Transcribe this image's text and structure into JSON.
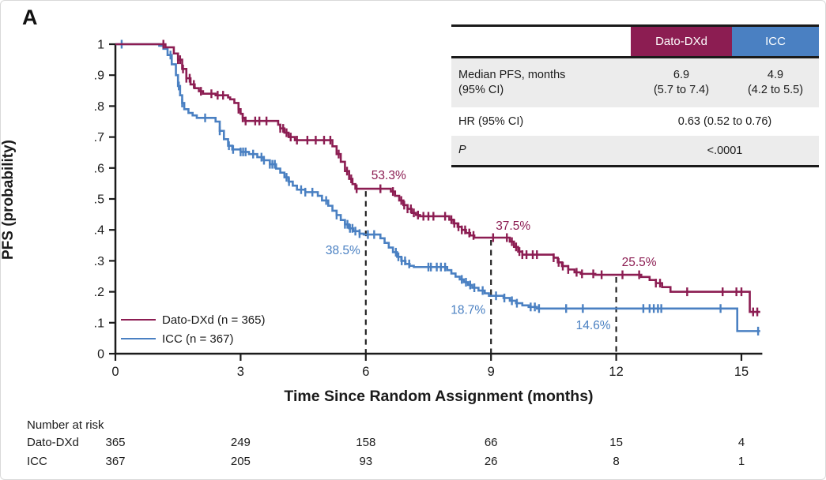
{
  "panel_label": "A",
  "chart_data": {
    "type": "line",
    "subtype": "kaplan-meier-step",
    "title": "",
    "x_axis": {
      "label": "Time Since Random Assignment (months)",
      "ticks": [
        0,
        3,
        6,
        9,
        12,
        15
      ],
      "range": [
        0,
        15.5
      ],
      "grid": false
    },
    "y_axis": {
      "label": "PFS (probability)",
      "ticks": [
        0,
        0.1,
        0.2,
        0.3,
        0.4,
        0.5,
        0.6,
        0.7,
        0.8,
        0.9,
        1
      ],
      "tick_labels": [
        "0",
        ".1",
        ".2",
        ".3",
        ".4",
        ".5",
        ".6",
        ".7",
        ".8",
        ".9",
        "1"
      ],
      "range": [
        0,
        1
      ],
      "grid": false
    },
    "legend_position": "lower-left",
    "series": [
      {
        "name": "ICC",
        "legend_label": "ICC (n = 367)",
        "color": "#4A80C2",
        "end_t": 15.45,
        "steps": [
          [
            0,
            1.0
          ],
          [
            1.05,
            0.995
          ],
          [
            1.15,
            0.985
          ],
          [
            1.25,
            0.965
          ],
          [
            1.35,
            0.935
          ],
          [
            1.45,
            0.9
          ],
          [
            1.5,
            0.865
          ],
          [
            1.55,
            0.835
          ],
          [
            1.6,
            0.81
          ],
          [
            1.65,
            0.79
          ],
          [
            1.75,
            0.778
          ],
          [
            1.85,
            0.77
          ],
          [
            1.95,
            0.762
          ],
          [
            2.4,
            0.75
          ],
          [
            2.5,
            0.72
          ],
          [
            2.6,
            0.693
          ],
          [
            2.7,
            0.672
          ],
          [
            2.8,
            0.66
          ],
          [
            3.0,
            0.652
          ],
          [
            3.2,
            0.645
          ],
          [
            3.4,
            0.635
          ],
          [
            3.55,
            0.625
          ],
          [
            3.7,
            0.612
          ],
          [
            3.85,
            0.598
          ],
          [
            3.95,
            0.585
          ],
          [
            4.05,
            0.57
          ],
          [
            4.15,
            0.556
          ],
          [
            4.25,
            0.543
          ],
          [
            4.35,
            0.53
          ],
          [
            4.55,
            0.522
          ],
          [
            4.85,
            0.51
          ],
          [
            4.95,
            0.495
          ],
          [
            5.1,
            0.478
          ],
          [
            5.2,
            0.462
          ],
          [
            5.3,
            0.448
          ],
          [
            5.4,
            0.432
          ],
          [
            5.5,
            0.418
          ],
          [
            5.6,
            0.405
          ],
          [
            5.7,
            0.396
          ],
          [
            5.85,
            0.388
          ],
          [
            5.95,
            0.385
          ],
          [
            6.35,
            0.373
          ],
          [
            6.45,
            0.358
          ],
          [
            6.55,
            0.343
          ],
          [
            6.65,
            0.328
          ],
          [
            6.75,
            0.313
          ],
          [
            6.85,
            0.3
          ],
          [
            6.95,
            0.29
          ],
          [
            7.05,
            0.284
          ],
          [
            7.15,
            0.28
          ],
          [
            7.95,
            0.27
          ],
          [
            8.05,
            0.259
          ],
          [
            8.15,
            0.249
          ],
          [
            8.25,
            0.24
          ],
          [
            8.35,
            0.231
          ],
          [
            8.45,
            0.222
          ],
          [
            8.55,
            0.213
          ],
          [
            8.7,
            0.204
          ],
          [
            8.85,
            0.195
          ],
          [
            8.95,
            0.187
          ],
          [
            9.3,
            0.18
          ],
          [
            9.45,
            0.171
          ],
          [
            9.6,
            0.163
          ],
          [
            9.75,
            0.156
          ],
          [
            9.9,
            0.151
          ],
          [
            10.1,
            0.146
          ],
          [
            14.9,
            0.073
          ]
        ],
        "censor_times": [
          0.15,
          1.32,
          1.52,
          1.6,
          2.15,
          2.5,
          2.72,
          2.82,
          3.0,
          3.06,
          3.12,
          3.3,
          3.5,
          3.56,
          3.7,
          3.76,
          3.82,
          4.1,
          4.16,
          4.45,
          4.55,
          4.72,
          5.05,
          5.3,
          5.5,
          5.56,
          5.62,
          5.68,
          5.75,
          5.85,
          6.05,
          6.2,
          6.72,
          6.78,
          6.86,
          6.94,
          7.04,
          7.5,
          7.56,
          7.7,
          7.8,
          7.9,
          8.3,
          8.4,
          8.5,
          8.6,
          8.8,
          9.12,
          9.32,
          9.5,
          9.62,
          9.95,
          10.05,
          10.15,
          10.8,
          11.2,
          12.65,
          12.8,
          12.9,
          13.0,
          13.08,
          14.5,
          15.4
        ],
        "annotations": [
          {
            "label": "38.5%",
            "t": 6,
            "s": 0.385,
            "dx": -7,
            "dy": 25,
            "anchor": "end"
          },
          {
            "label": "18.7%",
            "t": 9,
            "s": 0.187,
            "dx": -7,
            "dy": 23,
            "anchor": "end"
          },
          {
            "label": "14.6%",
            "t": 12,
            "s": 0.146,
            "dx": -7,
            "dy": 26,
            "anchor": "end"
          }
        ]
      },
      {
        "name": "Dato-DXd",
        "legend_label": "Dato-DXd (n = 365)",
        "color": "#8C1D52",
        "end_t": 15.45,
        "steps": [
          [
            0,
            1.0
          ],
          [
            1.2,
            0.99
          ],
          [
            1.4,
            0.97
          ],
          [
            1.5,
            0.95
          ],
          [
            1.6,
            0.92
          ],
          [
            1.7,
            0.89
          ],
          [
            1.8,
            0.87
          ],
          [
            1.9,
            0.858
          ],
          [
            2.0,
            0.848
          ],
          [
            2.1,
            0.84
          ],
          [
            2.4,
            0.835
          ],
          [
            2.7,
            0.828
          ],
          [
            2.75,
            0.822
          ],
          [
            2.85,
            0.81
          ],
          [
            2.95,
            0.79
          ],
          [
            3.0,
            0.775
          ],
          [
            3.05,
            0.762
          ],
          [
            3.1,
            0.752
          ],
          [
            3.9,
            0.74
          ],
          [
            3.95,
            0.728
          ],
          [
            4.05,
            0.714
          ],
          [
            4.15,
            0.7
          ],
          [
            4.3,
            0.69
          ],
          [
            5.2,
            0.67
          ],
          [
            5.3,
            0.645
          ],
          [
            5.4,
            0.62
          ],
          [
            5.5,
            0.59
          ],
          [
            5.6,
            0.565
          ],
          [
            5.68,
            0.548
          ],
          [
            5.75,
            0.533
          ],
          [
            6.6,
            0.524
          ],
          [
            6.7,
            0.51
          ],
          [
            6.8,
            0.495
          ],
          [
            6.9,
            0.48
          ],
          [
            7.0,
            0.468
          ],
          [
            7.1,
            0.455
          ],
          [
            7.2,
            0.448
          ],
          [
            7.3,
            0.444
          ],
          [
            8.0,
            0.433
          ],
          [
            8.1,
            0.421
          ],
          [
            8.2,
            0.41
          ],
          [
            8.3,
            0.4
          ],
          [
            8.4,
            0.39
          ],
          [
            8.5,
            0.382
          ],
          [
            8.6,
            0.375
          ],
          [
            9.45,
            0.362
          ],
          [
            9.55,
            0.345
          ],
          [
            9.65,
            0.33
          ],
          [
            9.75,
            0.32
          ],
          [
            10.5,
            0.31
          ],
          [
            10.6,
            0.295
          ],
          [
            10.7,
            0.283
          ],
          [
            10.85,
            0.272
          ],
          [
            11.0,
            0.263
          ],
          [
            11.15,
            0.258
          ],
          [
            11.5,
            0.255
          ],
          [
            12.6,
            0.248
          ],
          [
            12.8,
            0.238
          ],
          [
            12.95,
            0.228
          ],
          [
            13.1,
            0.215
          ],
          [
            13.3,
            0.2
          ],
          [
            15.2,
            0.135
          ]
        ],
        "censor_times": [
          1.15,
          1.5,
          1.55,
          1.62,
          1.7,
          1.78,
          1.88,
          2.05,
          2.3,
          2.45,
          2.58,
          2.95,
          3.05,
          3.12,
          3.35,
          3.45,
          3.62,
          3.95,
          4.02,
          4.1,
          4.2,
          4.35,
          4.6,
          4.8,
          5.0,
          5.15,
          5.35,
          5.55,
          5.65,
          5.78,
          6.35,
          6.65,
          6.85,
          6.92,
          7.0,
          7.08,
          7.15,
          7.25,
          7.38,
          7.5,
          7.62,
          7.9,
          8.05,
          8.12,
          8.22,
          8.3,
          8.38,
          8.48,
          8.58,
          9.05,
          9.38,
          9.5,
          9.6,
          9.68,
          9.75,
          9.85,
          10.0,
          10.1,
          10.5,
          10.62,
          10.72,
          10.85,
          11.05,
          11.18,
          11.45,
          11.65,
          12.15,
          12.55,
          12.95,
          13.05,
          13.7,
          14.55,
          14.88,
          15.0,
          15.28,
          15.38
        ],
        "annotations": [
          {
            "label": "53.3%",
            "t": 6,
            "s": 0.533,
            "dx": 7,
            "dy": -12,
            "anchor": "start"
          },
          {
            "label": "37.5%",
            "t": 9,
            "s": 0.375,
            "dx": 6,
            "dy": -10,
            "anchor": "start"
          },
          {
            "label": "25.5%",
            "t": 12,
            "s": 0.255,
            "dx": 7,
            "dy": -11,
            "anchor": "start"
          }
        ]
      }
    ],
    "dashed_lines": [
      {
        "t": 6,
        "top": 0.533
      },
      {
        "t": 9,
        "top": 0.375
      },
      {
        "t": 12,
        "top": 0.255
      }
    ]
  },
  "axes": {
    "x_label": "Time Since Random Assignment (months)",
    "y_label": "PFS (probability)"
  },
  "legend": {
    "items": [
      {
        "label": "Dato-DXd (n = 365)",
        "color": "#8C1D52"
      },
      {
        "label": "ICC (n = 367)",
        "color": "#4A80C2"
      }
    ]
  },
  "stats_table": {
    "col_dato": "Dato-DXd",
    "col_icc": "ICC",
    "col_dato_color": "#8C1D52",
    "col_icc_color": "#4A80C2",
    "row_median": {
      "label1": "Median PFS, months",
      "label2": "(95% CI)",
      "dato1": "6.9",
      "dato2": "(5.7 to 7.4)",
      "icc1": "4.9",
      "icc2": "(4.2 to 5.5)"
    },
    "row_hr": {
      "label": "HR (95% CI)",
      "value": "0.63 (0.52 to 0.76)"
    },
    "row_p": {
      "label": "P",
      "value": "<.0001"
    }
  },
  "risk_table": {
    "title": "Number at risk",
    "time_points": [
      0,
      3,
      6,
      9,
      12,
      15
    ],
    "rows": [
      {
        "label": "Dato-DXd",
        "values": [
          "365",
          "249",
          "158",
          "66",
          "15",
          "4"
        ]
      },
      {
        "label": "ICC",
        "values": [
          "367",
          "205",
          "93",
          "26",
          "8",
          "1"
        ]
      }
    ]
  }
}
